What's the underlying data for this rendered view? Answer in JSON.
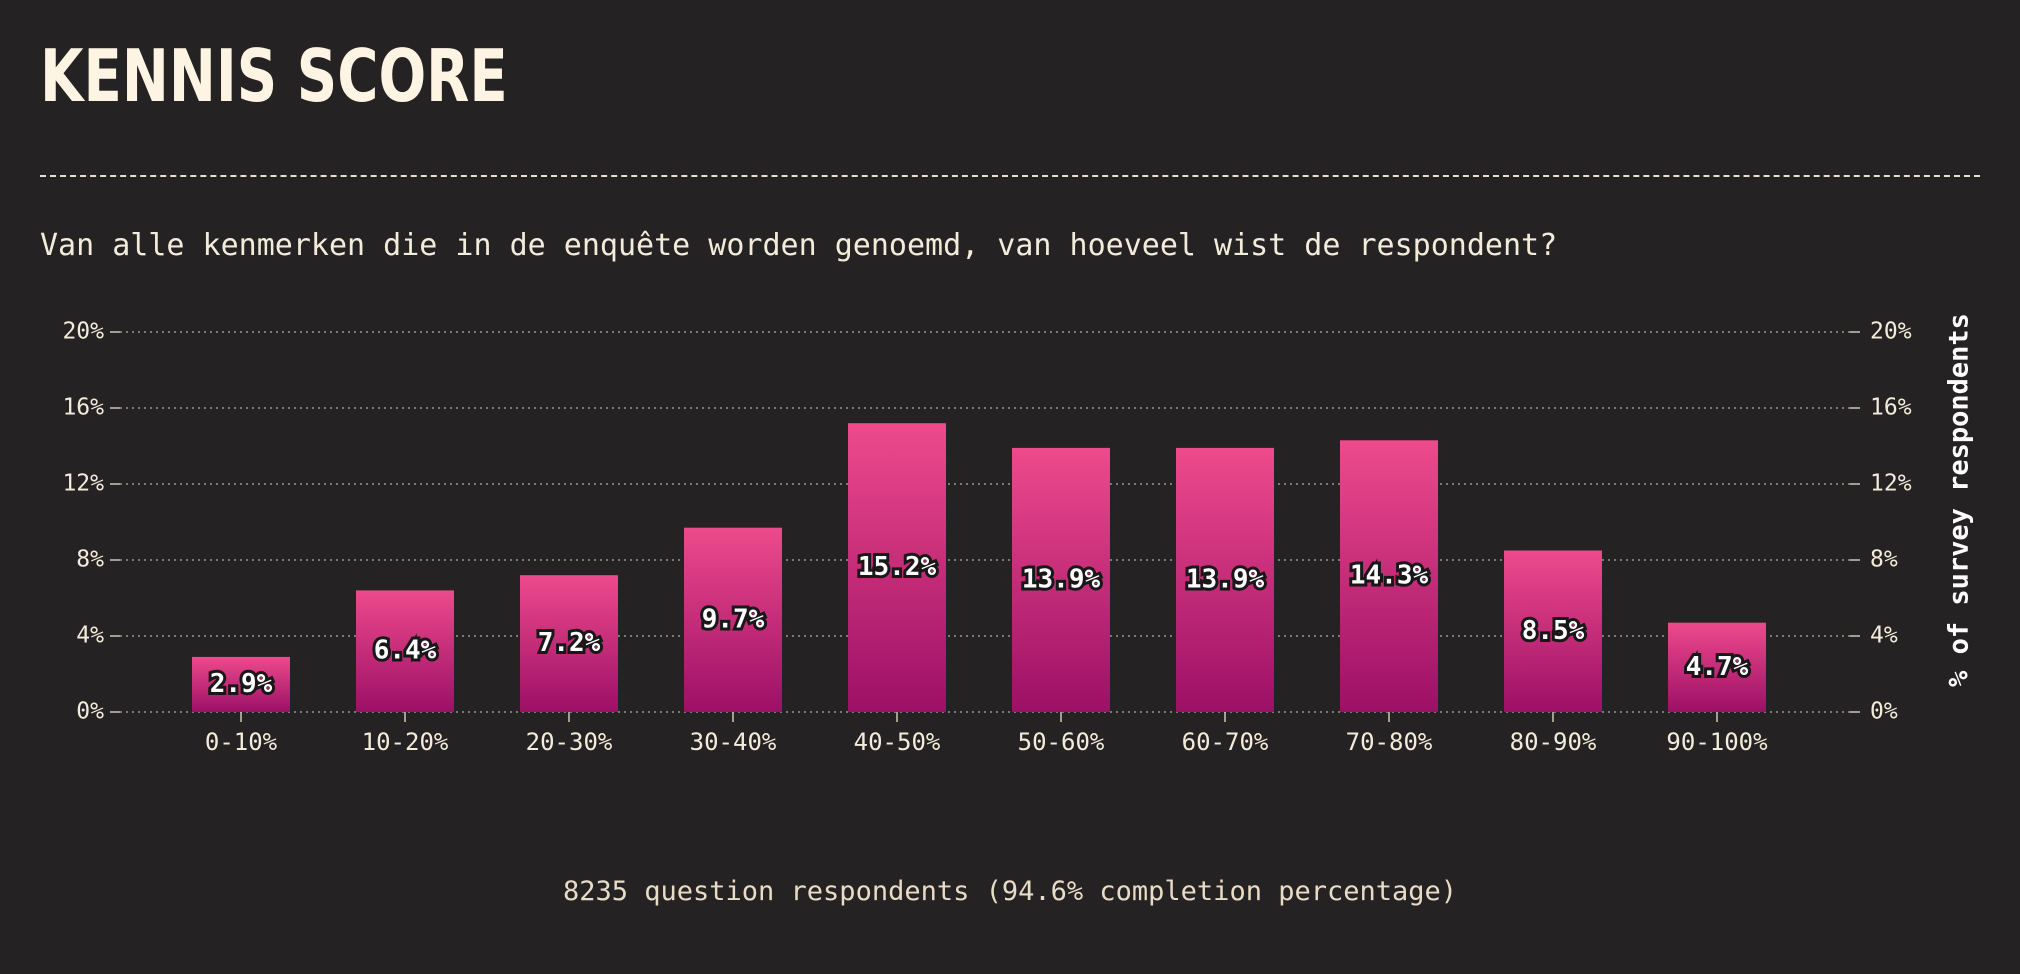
{
  "header": {
    "title": "KENNIS SCORE",
    "subtitle": "Van alle kenmerken die in de enquête worden genoemd, van hoeveel wist de respondent?"
  },
  "footer": {
    "note": "8235 question respondents (94.6% completion percentage)"
  },
  "colors": {
    "background": "#252223",
    "bar_top": "#ee4a8c",
    "bar_bottom": "#9c1066",
    "text": "#f4ecdb"
  },
  "chart_data": {
    "type": "bar",
    "categories": [
      "0-10%",
      "10-20%",
      "20-30%",
      "30-40%",
      "40-50%",
      "50-60%",
      "60-70%",
      "70-80%",
      "80-90%",
      "90-100%"
    ],
    "values": [
      2.9,
      6.4,
      7.2,
      9.7,
      15.2,
      13.9,
      13.9,
      14.3,
      8.5,
      4.7
    ],
    "value_labels": [
      "2.9%",
      "6.4%",
      "7.2%",
      "9.7%",
      "15.2%",
      "13.9%",
      "13.9%",
      "14.3%",
      "8.5%",
      "4.7%"
    ],
    "title": "KENNIS SCORE",
    "xlabel": "",
    "ylabel": "% of survey respondents",
    "ylim": [
      0,
      20
    ],
    "yticks": [
      0,
      4,
      8,
      12,
      16,
      20
    ],
    "ytick_labels": [
      "0%",
      "4%",
      "8%",
      "12%",
      "16%",
      "20%"
    ],
    "grid": true,
    "legend": "none"
  }
}
